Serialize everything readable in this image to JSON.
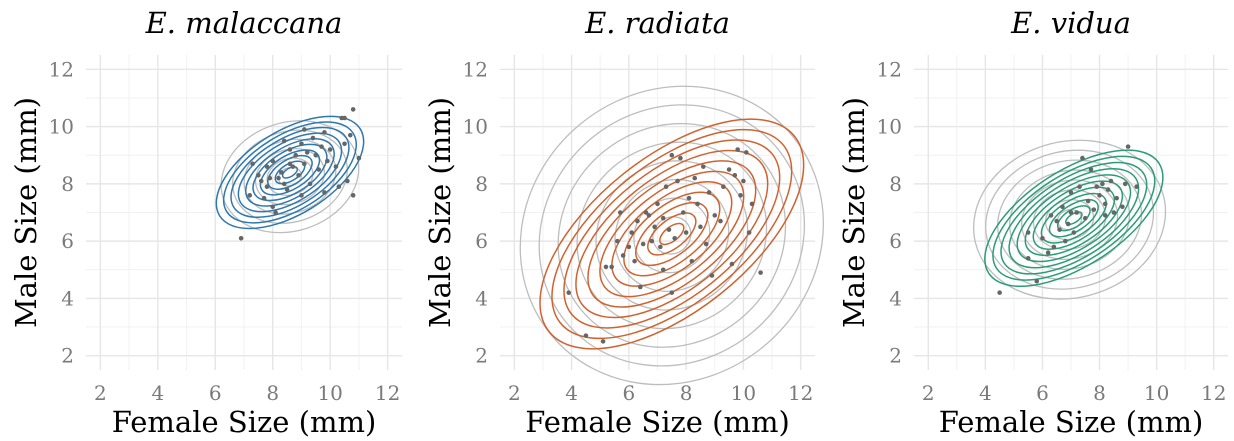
{
  "chart_data": [
    {
      "type": "scatter",
      "title": "E. malaccana",
      "xlabel": "Female Size (mm)",
      "ylabel": "Male Size (mm)",
      "xlim": [
        1.5,
        12.5
      ],
      "ylim": [
        1.5,
        12.5
      ],
      "xticks": [
        2,
        4,
        6,
        8,
        10,
        12
      ],
      "yticks": [
        2,
        4,
        6,
        8,
        10,
        12
      ],
      "colors": {
        "contour": "#2e78b0",
        "prior": "#bdbdbd",
        "points": "#666666"
      },
      "prior_contours": {
        "center": [
          8.6,
          8.25
        ],
        "sx": 1.9,
        "sy": 1.55,
        "rho": 0.15,
        "levels": 6
      },
      "posterior_contours": {
        "center": [
          8.6,
          8.4
        ],
        "sx": 1.9,
        "sy": 1.45,
        "rho": 0.55,
        "levels": 10
      },
      "points": [
        [
          6.9,
          6.1
        ],
        [
          7.2,
          7.6
        ],
        [
          7.3,
          8.7
        ],
        [
          7.5,
          8.3
        ],
        [
          7.6,
          8.1
        ],
        [
          7.8,
          7.9
        ],
        [
          7.9,
          8.2
        ],
        [
          7.8,
          8.6
        ],
        [
          8.0,
          7.2
        ],
        [
          8.1,
          7.0
        ],
        [
          8.2,
          8.2
        ],
        [
          8.3,
          8.4
        ],
        [
          8.4,
          8.0
        ],
        [
          8.5,
          7.8
        ],
        [
          8.6,
          8.7
        ],
        [
          8.6,
          9.2
        ],
        [
          8.7,
          8.6
        ],
        [
          8.8,
          9.0
        ],
        [
          8.9,
          8.3
        ],
        [
          9.0,
          9.4
        ],
        [
          9.1,
          8.7
        ],
        [
          9.1,
          9.9
        ],
        [
          9.2,
          9.1
        ],
        [
          9.3,
          8.0
        ],
        [
          9.4,
          9.6
        ],
        [
          9.5,
          9.0
        ],
        [
          9.6,
          8.5
        ],
        [
          9.7,
          9.3
        ],
        [
          9.8,
          7.7
        ],
        [
          9.8,
          9.8
        ],
        [
          9.9,
          8.8
        ],
        [
          10.0,
          9.2
        ],
        [
          10.2,
          8.6
        ],
        [
          10.3,
          7.9
        ],
        [
          10.4,
          10.3
        ],
        [
          10.5,
          10.3
        ],
        [
          10.5,
          9.4
        ],
        [
          10.6,
          8.1
        ],
        [
          10.7,
          9.7
        ],
        [
          10.8,
          10.6
        ],
        [
          10.8,
          7.6
        ],
        [
          11.0,
          8.9
        ],
        [
          8.0,
          8.8
        ],
        [
          8.4,
          9.5
        ],
        [
          9.0,
          7.6
        ],
        [
          7.7,
          7.5
        ]
      ]
    },
    {
      "type": "scatter",
      "title": "E. radiata",
      "xlabel": "Female Size (mm)",
      "ylabel": "Male Size (mm)",
      "xlim": [
        1.5,
        12.5
      ],
      "ylim": [
        1.5,
        12.5
      ],
      "xticks": [
        2,
        4,
        6,
        8,
        10,
        12
      ],
      "yticks": [
        2,
        4,
        6,
        8,
        10,
        12
      ],
      "colors": {
        "contour": "#cf6330",
        "prior": "#bdbdbd",
        "points": "#666666"
      },
      "prior_contours": {
        "center": [
          7.5,
          6.2
        ],
        "sx": 3.15,
        "sy": 3.1,
        "rho": 0.08,
        "levels": 8
      },
      "posterior_contours": {
        "center": [
          7.5,
          6.25
        ],
        "sx": 3.1,
        "sy": 2.7,
        "rho": 0.6,
        "levels": 11
      },
      "points": [
        [
          3.9,
          4.2
        ],
        [
          4.5,
          2.7
        ],
        [
          5.1,
          2.5
        ],
        [
          5.2,
          5.1
        ],
        [
          5.4,
          5.1
        ],
        [
          5.6,
          6.0
        ],
        [
          5.7,
          7.0
        ],
        [
          5.8,
          5.5
        ],
        [
          6.0,
          5.8
        ],
        [
          6.1,
          6.3
        ],
        [
          6.2,
          5.3
        ],
        [
          6.3,
          6.7
        ],
        [
          6.4,
          4.4
        ],
        [
          6.5,
          5.9
        ],
        [
          6.6,
          7.0
        ],
        [
          6.8,
          6.0
        ],
        [
          6.9,
          6.5
        ],
        [
          7.0,
          7.3
        ],
        [
          7.1,
          5.8
        ],
        [
          7.2,
          6.8
        ],
        [
          7.3,
          7.9
        ],
        [
          7.4,
          6.4
        ],
        [
          7.5,
          9.0
        ],
        [
          7.5,
          4.2
        ],
        [
          7.6,
          6.1
        ],
        [
          7.7,
          8.1
        ],
        [
          7.8,
          8.9
        ],
        [
          7.9,
          7.0
        ],
        [
          8.0,
          6.3
        ],
        [
          8.1,
          7.5
        ],
        [
          8.2,
          5.3
        ],
        [
          8.3,
          8.2
        ],
        [
          8.4,
          7.3
        ],
        [
          8.5,
          6.5
        ],
        [
          8.6,
          8.6
        ],
        [
          8.8,
          7.7
        ],
        [
          8.9,
          4.8
        ],
        [
          9.0,
          6.9
        ],
        [
          9.2,
          6.7
        ],
        [
          9.3,
          7.9
        ],
        [
          9.5,
          8.5
        ],
        [
          9.6,
          5.2
        ],
        [
          9.7,
          8.3
        ],
        [
          9.8,
          9.2
        ],
        [
          9.9,
          7.6
        ],
        [
          10.0,
          8.1
        ],
        [
          10.1,
          9.1
        ],
        [
          10.2,
          6.3
        ],
        [
          10.3,
          7.3
        ],
        [
          10.6,
          4.9
        ],
        [
          6.7,
          6.9
        ],
        [
          7.2,
          5.0
        ],
        [
          8.7,
          5.9
        ]
      ]
    },
    {
      "type": "scatter",
      "title": "E. vidua",
      "xlabel": "Female Size (mm)",
      "ylabel": "Male Size (mm)",
      "xlim": [
        1.5,
        12.5
      ],
      "ylim": [
        1.5,
        12.5
      ],
      "xticks": [
        2,
        4,
        6,
        8,
        10,
        12
      ],
      "yticks": [
        2,
        4,
        6,
        8,
        10,
        12
      ],
      "colors": {
        "contour": "#2a9d78",
        "prior": "#bdbdbd",
        "points": "#666666"
      },
      "prior_contours": {
        "center": [
          6.95,
          6.75
        ],
        "sx": 2.0,
        "sy": 1.65,
        "rho": 0.1,
        "levels": 8
      },
      "posterior_contours": {
        "center": [
          7.1,
          6.8
        ],
        "sx": 2.1,
        "sy": 1.6,
        "rho": 0.6,
        "levels": 11
      },
      "points": [
        [
          4.5,
          4.2
        ],
        [
          5.5,
          5.4
        ],
        [
          5.5,
          6.3
        ],
        [
          5.8,
          4.6
        ],
        [
          6.0,
          6.1
        ],
        [
          6.2,
          5.6
        ],
        [
          6.3,
          6.9
        ],
        [
          6.4,
          5.8
        ],
        [
          6.6,
          6.4
        ],
        [
          6.7,
          7.2
        ],
        [
          6.8,
          6.0
        ],
        [
          6.9,
          6.6
        ],
        [
          7.0,
          7.7
        ],
        [
          7.1,
          6.3
        ],
        [
          7.2,
          7.0
        ],
        [
          7.3,
          7.9
        ],
        [
          7.4,
          8.9
        ],
        [
          7.5,
          6.8
        ],
        [
          7.6,
          7.4
        ],
        [
          7.7,
          8.5
        ],
        [
          7.8,
          7.1
        ],
        [
          7.9,
          7.9
        ],
        [
          8.0,
          7.6
        ],
        [
          8.1,
          8.0
        ],
        [
          8.2,
          7.3
        ],
        [
          8.3,
          7.8
        ],
        [
          8.4,
          8.1
        ],
        [
          8.5,
          7.0
        ],
        [
          8.6,
          7.5
        ],
        [
          8.8,
          7.2
        ],
        [
          8.9,
          8.0
        ],
        [
          9.0,
          9.3
        ],
        [
          9.3,
          7.9
        ],
        [
          6.5,
          6.7
        ],
        [
          7.0,
          7.0
        ],
        [
          8.2,
          6.9
        ]
      ]
    }
  ]
}
